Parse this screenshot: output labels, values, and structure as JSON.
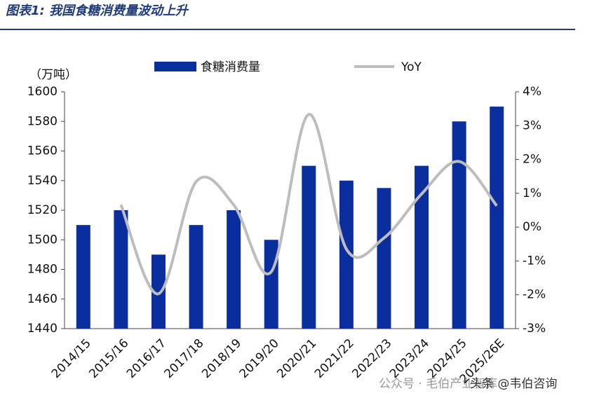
{
  "chart_data": {
    "type": "bar-line",
    "title": "图表1:  我国食糖消费量波动上升",
    "unit_label": "（万吨）",
    "categories": [
      "2014/15",
      "2015/16",
      "2016/17",
      "2017/18",
      "2018/19",
      "2019/20",
      "2020/21",
      "2021/22",
      "2022/23",
      "2023/24",
      "2024/25",
      "2025/26E"
    ],
    "series": [
      {
        "name": "食糖消费量",
        "type": "bar",
        "color": "#0b2e9e",
        "values": [
          1510,
          1520,
          1490,
          1510,
          1520,
          1500,
          1550,
          1540,
          1535,
          1550,
          1580,
          1590
        ]
      },
      {
        "name": "YoY",
        "type": "line",
        "axis": "y2",
        "color": "#bdbdbd",
        "values": [
          null,
          0.66,
          -1.97,
          1.34,
          0.66,
          -1.32,
          3.33,
          -0.65,
          -0.32,
          0.98,
          1.94,
          0.63
        ]
      }
    ],
    "ylim": [
      1440,
      1600
    ],
    "yticks": [
      1440,
      1460,
      1480,
      1500,
      1520,
      1540,
      1560,
      1580,
      1600
    ],
    "y2lim": [
      -3,
      4
    ],
    "y2ticks": [
      {
        "value": -3,
        "label": "-3%"
      },
      {
        "value": -2,
        "label": "-2%"
      },
      {
        "value": -1,
        "label": "-1%"
      },
      {
        "value": 0,
        "label": "0%"
      },
      {
        "value": 1,
        "label": "1%"
      },
      {
        "value": 2,
        "label": "2%"
      },
      {
        "value": 3,
        "label": "3%"
      },
      {
        "value": 4,
        "label": "4%"
      }
    ],
    "watermark": [
      "公众号 · 毛伯产业智库",
      "头条 @韦伯咨询"
    ]
  }
}
